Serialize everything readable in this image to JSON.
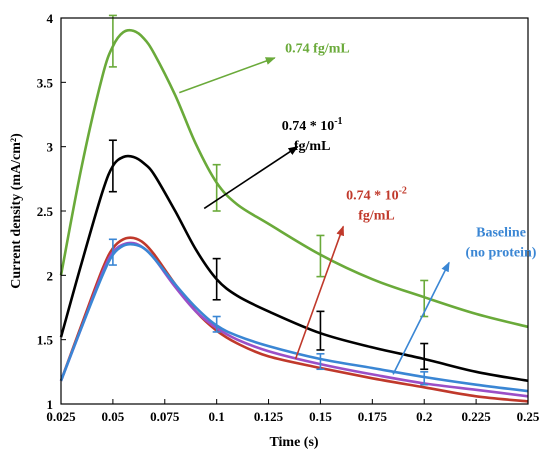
{
  "chart_data": {
    "type": "line",
    "xlabel": "Time (s)",
    "ylabel": "Current density (mA/cm²)",
    "xlim": [
      0.025,
      0.25
    ],
    "ylim": [
      1,
      4
    ],
    "x_ticks": [
      "0.025",
      "0.05",
      "0.075",
      "0.1",
      "0.125",
      "0.15",
      "0.175",
      "0.2",
      "0.225",
      "0.25"
    ],
    "y_ticks": [
      "1",
      "1.5",
      "2",
      "2.5",
      "3",
      "3.5",
      "4"
    ],
    "grid": false,
    "colors": {
      "green": "#6aaa3a",
      "black": "#000000",
      "red": "#c0392b",
      "blue": "#3a86d4",
      "purple": "#9b4fc7"
    },
    "series": [
      {
        "color": "green",
        "x": [
          0.025,
          0.035,
          0.045,
          0.05,
          0.055,
          0.06,
          0.065,
          0.07,
          0.08,
          0.09,
          0.1,
          0.11,
          0.125,
          0.15,
          0.175,
          0.2,
          0.225,
          0.25
        ],
        "y": [
          2.0,
          2.85,
          3.55,
          3.78,
          3.89,
          3.9,
          3.84,
          3.72,
          3.4,
          3.02,
          2.72,
          2.55,
          2.4,
          2.16,
          1.97,
          1.83,
          1.7,
          1.6
        ],
        "error_bars": [
          {
            "x": 0.05,
            "y": 3.82,
            "err": 0.2
          },
          {
            "x": 0.1,
            "y": 2.68,
            "err": 0.18
          },
          {
            "x": 0.15,
            "y": 2.15,
            "err": 0.16
          },
          {
            "x": 0.2,
            "y": 1.82,
            "err": 0.14
          }
        ]
      },
      {
        "color": "black",
        "x": [
          0.025,
          0.035,
          0.045,
          0.05,
          0.055,
          0.06,
          0.065,
          0.07,
          0.08,
          0.09,
          0.1,
          0.11,
          0.125,
          0.15,
          0.175,
          0.2,
          0.225,
          0.25
        ],
        "y": [
          1.52,
          2.1,
          2.65,
          2.85,
          2.92,
          2.92,
          2.87,
          2.78,
          2.5,
          2.2,
          1.97,
          1.84,
          1.72,
          1.55,
          1.44,
          1.35,
          1.25,
          1.18
        ],
        "error_bars": [
          {
            "x": 0.05,
            "y": 2.85,
            "err": 0.2
          },
          {
            "x": 0.1,
            "y": 1.97,
            "err": 0.16
          },
          {
            "x": 0.15,
            "y": 1.57,
            "err": 0.15
          },
          {
            "x": 0.2,
            "y": 1.37,
            "err": 0.1
          }
        ]
      },
      {
        "color": "red",
        "x": [
          0.025,
          0.035,
          0.045,
          0.05,
          0.055,
          0.06,
          0.065,
          0.07,
          0.08,
          0.09,
          0.1,
          0.11,
          0.125,
          0.15,
          0.175,
          0.2,
          0.225,
          0.25
        ],
        "y": [
          1.18,
          1.62,
          2.05,
          2.21,
          2.28,
          2.29,
          2.25,
          2.16,
          1.93,
          1.72,
          1.57,
          1.47,
          1.37,
          1.28,
          1.2,
          1.13,
          1.06,
          1.02
        ],
        "error_bars": []
      },
      {
        "color": "purple",
        "x": [
          0.025,
          0.035,
          0.045,
          0.05,
          0.055,
          0.06,
          0.065,
          0.07,
          0.08,
          0.09,
          0.1,
          0.11,
          0.125,
          0.15,
          0.175,
          0.2,
          0.225,
          0.25
        ],
        "y": [
          1.18,
          1.6,
          2.02,
          2.18,
          2.24,
          2.25,
          2.21,
          2.13,
          1.91,
          1.72,
          1.59,
          1.5,
          1.41,
          1.31,
          1.23,
          1.16,
          1.11,
          1.06
        ],
        "error_bars": []
      },
      {
        "color": "blue",
        "x": [
          0.025,
          0.035,
          0.045,
          0.05,
          0.055,
          0.06,
          0.065,
          0.07,
          0.08,
          0.09,
          0.1,
          0.11,
          0.125,
          0.15,
          0.175,
          0.2,
          0.225,
          0.25
        ],
        "y": [
          1.18,
          1.6,
          2.0,
          2.16,
          2.23,
          2.24,
          2.21,
          2.13,
          1.93,
          1.75,
          1.61,
          1.53,
          1.45,
          1.35,
          1.28,
          1.21,
          1.15,
          1.1
        ],
        "error_bars": [
          {
            "x": 0.05,
            "y": 2.18,
            "err": 0.1
          },
          {
            "x": 0.1,
            "y": 1.62,
            "err": 0.06
          },
          {
            "x": 0.15,
            "y": 1.33,
            "err": 0.06
          },
          {
            "x": 0.2,
            "y": 1.2,
            "err": 0.05
          }
        ]
      }
    ],
    "annotations": [
      {
        "id": "green",
        "color": "green",
        "lines": [
          "0.74 fg/mL"
        ],
        "text_at": [
          0.133,
          3.73
        ],
        "arrow_from": [
          0.082,
          3.42
        ],
        "arrow_to": [
          0.128,
          3.69
        ]
      },
      {
        "id": "black",
        "color": "black",
        "lines": [
          "0.74 * 10",
          "fg/mL"
        ],
        "sup": "-1",
        "text_at": [
          0.146,
          3.13
        ],
        "arrow_from": [
          0.094,
          2.52
        ],
        "arrow_to": [
          0.139,
          3.0
        ]
      },
      {
        "id": "red",
        "color": "red",
        "lines": [
          "0.74 * 10",
          "fg/mL"
        ],
        "sup": "-2",
        "text_at": [
          0.177,
          2.59
        ],
        "arrow_from": [
          0.138,
          1.35
        ],
        "arrow_to": [
          0.161,
          2.38
        ]
      },
      {
        "id": "blue",
        "color": "blue",
        "lines": [
          "Baseline",
          "(no protein)"
        ],
        "text_at": [
          0.237,
          2.3
        ],
        "arrow_from": [
          0.185,
          1.23
        ],
        "arrow_to": [
          0.212,
          2.1
        ]
      }
    ]
  }
}
